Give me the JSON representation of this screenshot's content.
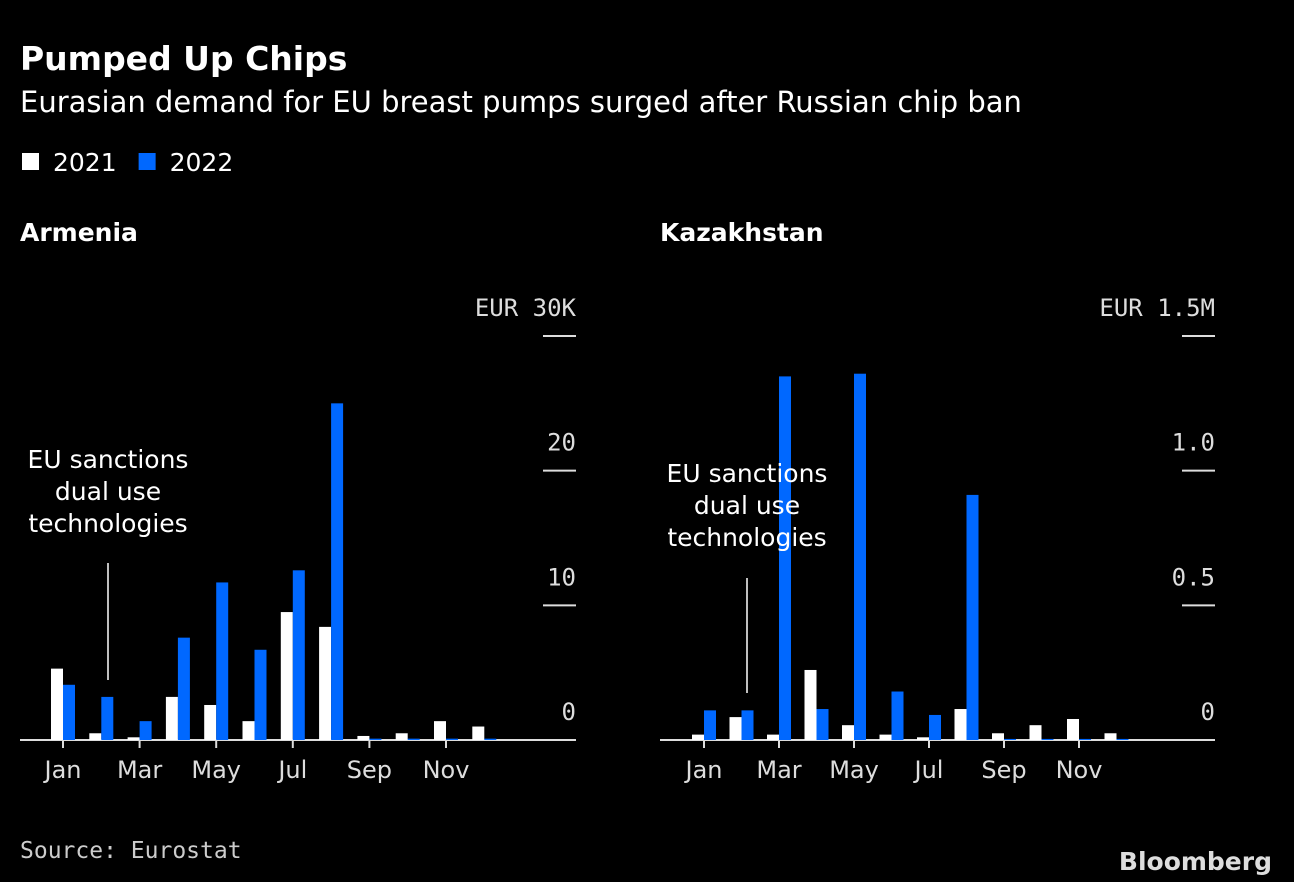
{
  "title": "Pumped Up Chips",
  "subtitle": "Eurasian demand for EU breast pumps surged after Russian chip ban",
  "source": "Source: Eurostat",
  "brand": "Bloomberg",
  "chart_data": [
    {
      "type": "bar",
      "title": "Armenia",
      "categories": [
        "Jan",
        null,
        "Mar",
        null,
        "May",
        null,
        "Jul",
        null,
        "Sep",
        null,
        "Nov",
        null
      ],
      "series": [
        {
          "name": "2021",
          "color": "#ffffff",
          "values": [
            5.3,
            0.5,
            0.2,
            3.2,
            2.6,
            1.4,
            9.5,
            8.4,
            0.3,
            0.5,
            1.4,
            1.0
          ]
        },
        {
          "name": "2022",
          "color": "#0068ff",
          "values": [
            4.1,
            3.2,
            1.4,
            7.6,
            11.7,
            6.7,
            12.6,
            25.0,
            0.1,
            0.1,
            0.1,
            0.1
          ]
        }
      ],
      "ylim": [
        0,
        30
      ],
      "yticks": [
        0,
        10,
        20,
        {
          "value": 30,
          "label": "EUR 30K"
        }
      ],
      "annotation": [
        "EU sanctions",
        "dual use",
        "technologies"
      ]
    },
    {
      "type": "bar",
      "title": "Kazakhstan",
      "categories": [
        "Jan",
        null,
        "Mar",
        null,
        "May",
        null,
        "Jul",
        null,
        "Sep",
        null,
        "Nov",
        null
      ],
      "series": [
        {
          "name": "2021",
          "color": "#ffffff",
          "values": [
            0.02,
            0.085,
            0.02,
            0.26,
            0.055,
            0.02,
            0.01,
            0.115,
            0.025,
            0.055,
            0.078,
            0.025
          ]
        },
        {
          "name": "2022",
          "color": "#0068ff",
          "values": [
            0.11,
            0.11,
            1.35,
            0.115,
            1.36,
            0.18,
            0.093,
            0.91,
            0.004,
            0.004,
            0.004,
            0.004
          ]
        }
      ],
      "ylim": [
        0,
        1.5
      ],
      "yticks": [
        0,
        0.5,
        {
          "value": 1,
          "label": "1.0"
        },
        {
          "value": 1.5,
          "label": "EUR 1.5M"
        }
      ],
      "annotation": [
        "EU sanctions",
        "dual use",
        "technologies"
      ]
    }
  ]
}
